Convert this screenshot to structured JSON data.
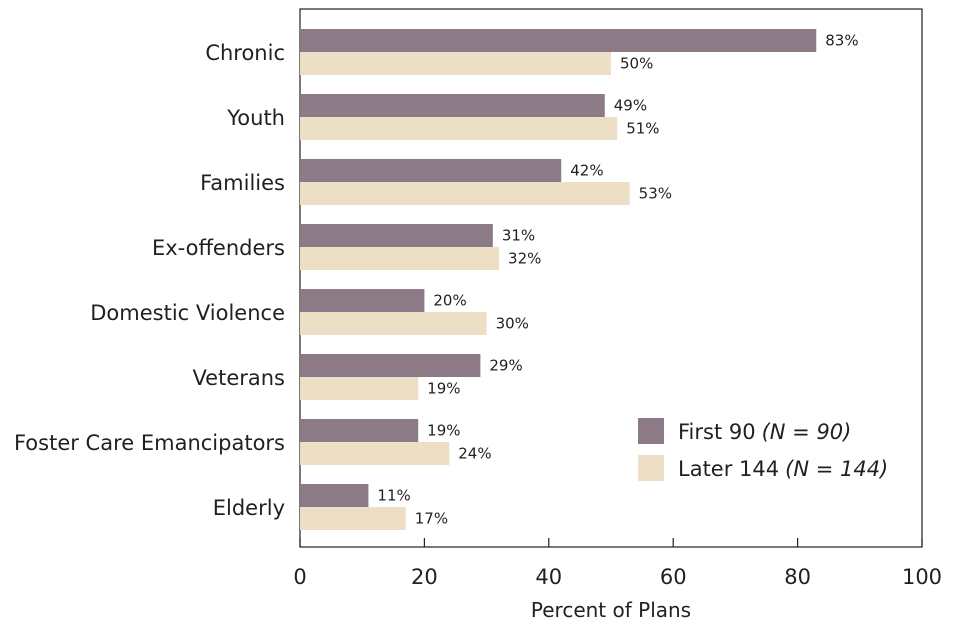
{
  "chart_data": {
    "type": "bar",
    "orientation": "horizontal",
    "categories": [
      "Chronic",
      "Youth",
      "Families",
      "Ex-offenders",
      "Domestic Violence",
      "Veterans",
      "Foster Care Emancipators",
      "Elderly"
    ],
    "series": [
      {
        "name": "First 90",
        "name_suffix": "(N = 90)",
        "color": "#8c7b86",
        "values": [
          83,
          49,
          42,
          31,
          20,
          29,
          19,
          11
        ]
      },
      {
        "name": "Later 144",
        "name_suffix": "(N = 144)",
        "color": "#ecdfc5",
        "values": [
          50,
          51,
          53,
          32,
          30,
          19,
          24,
          17
        ]
      }
    ],
    "value_labels": [
      [
        "83%",
        "49%",
        "42%",
        "31%",
        "20%",
        "29%",
        "19%",
        "11%"
      ],
      [
        "50%",
        "51%",
        "53%",
        "32%",
        "30%",
        "19%",
        "24%",
        "17%"
      ]
    ],
    "xlabel": "Percent of Plans",
    "ylabel": "",
    "xlim": [
      0,
      100
    ],
    "xticks": [
      0,
      20,
      40,
      60,
      80,
      100
    ],
    "xtick_labels": [
      "0",
      "20",
      "40",
      "60",
      "80",
      "100"
    ],
    "grid": false,
    "legend_position": "bottom-right"
  }
}
